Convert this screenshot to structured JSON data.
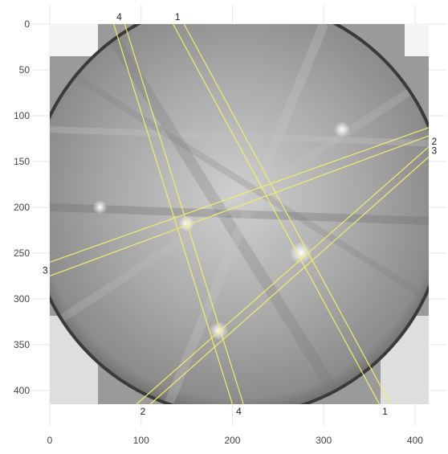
{
  "chart_data": {
    "type": "heatmap",
    "title": "",
    "xlabel": "",
    "ylabel": "",
    "xlim": [
      0,
      415
    ],
    "ylim": [
      415,
      0
    ],
    "grid": true,
    "x_ticks": [
      0,
      100,
      200,
      300,
      400
    ],
    "y_ticks": [
      0,
      50,
      100,
      150,
      200,
      250,
      300,
      350,
      400
    ],
    "image": "grayscale EBSD Kikuchi pattern with circular detector edge",
    "line_color": "#f2ee6a",
    "bands": [
      {
        "label": "1",
        "lines": [
          {
            "p1": [
              135,
              0
            ],
            "p2": [
              361,
              415
            ]
          },
          {
            "p1": [
              147,
              0
            ],
            "p2": [
              373,
              415
            ]
          }
        ],
        "labels": [
          {
            "text": "1",
            "x": 140,
            "y": -8
          },
          {
            "text": "1",
            "x": 367,
            "y": 423
          }
        ]
      },
      {
        "label": "2",
        "lines": [
          {
            "p1": [
              95,
              415
            ],
            "p2": [
              415,
              134
            ]
          },
          {
            "p1": [
              110,
              415
            ],
            "p2": [
              415,
              145
            ]
          }
        ],
        "labels": [
          {
            "text": "2",
            "x": 102,
            "y": 423
          },
          {
            "text": "2",
            "x": 421,
            "y": 128
          }
        ]
      },
      {
        "label": "3",
        "lines": [
          {
            "p1": [
              0,
              260
            ],
            "p2": [
              415,
              113
            ]
          },
          {
            "p1": [
              0,
              275
            ],
            "p2": [
              415,
              122
            ]
          }
        ],
        "labels": [
          {
            "text": "3",
            "x": -5,
            "y": 269
          },
          {
            "text": "3",
            "x": 421,
            "y": 138
          }
        ]
      },
      {
        "label": "4",
        "lines": [
          {
            "p1": [
              70,
              0
            ],
            "p2": [
              200,
              415
            ]
          },
          {
            "p1": [
              82,
              0
            ],
            "p2": [
              212,
              415
            ]
          }
        ],
        "labels": [
          {
            "text": "4",
            "x": 76,
            "y": -8
          },
          {
            "text": "4",
            "x": 207,
            "y": 423
          }
        ]
      }
    ]
  }
}
